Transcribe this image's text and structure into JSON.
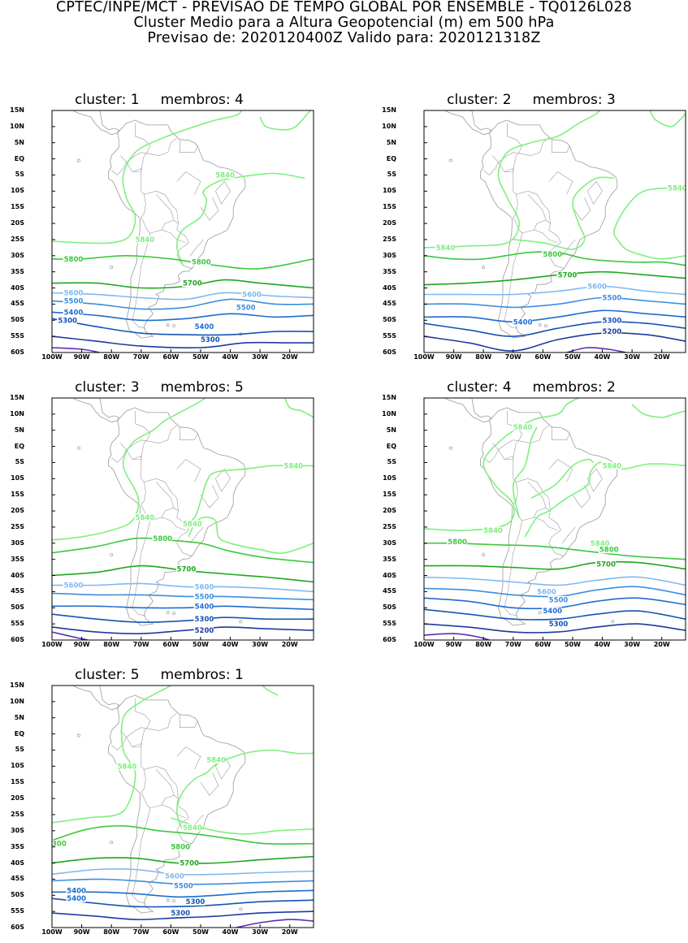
{
  "header": {
    "line1": "CPTEC/INPE/MCT - PREVISAO DE TEMPO GLOBAL POR ENSEMBLE - TQ0126L028",
    "line2": "Cluster Medio para a Altura Geopotencial (m) em 500 hPa",
    "line3": "Previsao de: 2020120400Z   Valido para: 2020121318Z"
  },
  "axes": {
    "lat_labels": [
      "15N",
      "10N",
      "5N",
      "EQ",
      "5S",
      "10S",
      "15S",
      "20S",
      "25S",
      "30S",
      "35S",
      "40S",
      "45S",
      "50S",
      "55S",
      "60S"
    ],
    "lon_labels": [
      "100W",
      "90W",
      "80W",
      "70W",
      "60W",
      "50W",
      "40W",
      "30W",
      "20W"
    ]
  },
  "colors": {
    "c5840": "#7fef7f",
    "c5800": "#3cc83c",
    "c5700": "#1fa61f",
    "c5600": "#7fb8f0",
    "c5500": "#3c8ee0",
    "c5400": "#1e6ccf",
    "c5300": "#1454b4",
    "c5200": "#1c3aa0",
    "c5100": "#5a2fb0",
    "coast": "#9a9a9a"
  },
  "panels": [
    {
      "title_a": "cluster: 1",
      "title_b": "membros: 4",
      "labels": {
        "a": "5840",
        "b": "5840",
        "c": "5800",
        "d": "5800",
        "e": "5700",
        "f": "5600",
        "g": "5600",
        "h": "5500",
        "i": "5500",
        "j": "5400",
        "k": "5300",
        "l": "5400",
        "m": "5300"
      }
    },
    {
      "title_a": "cluster: 2",
      "title_b": "membros: 3",
      "labels": {
        "a": "5840",
        "b": "5840",
        "c": "5800",
        "e": "5700",
        "f": "5600",
        "h": "5500",
        "j": "5400",
        "k": "5300",
        "n": "5200"
      }
    },
    {
      "title_a": "cluster: 3",
      "title_b": "membros: 5",
      "labels": {
        "a": "5840",
        "b": "5840",
        "g": "5840",
        "c": "5800",
        "e": "5700",
        "f": "5600",
        "h": "5600",
        "i": "5500",
        "j": "5400",
        "k": "5300",
        "n": "5200"
      }
    },
    {
      "title_a": "cluster: 4",
      "title_b": "membros: 2",
      "labels": {
        "a": "5840",
        "b": "5840",
        "g": "5840",
        "x": "5840",
        "c": "5800",
        "d": "5800",
        "e": "5700",
        "f": "5600",
        "h": "5500",
        "j": "5400",
        "k": "5300"
      }
    },
    {
      "title_a": "cluster: 5",
      "title_b": "membros: 1",
      "labels": {
        "a": "5840",
        "b": "5840",
        "g": "5840",
        "c": "300",
        "d": "5800",
        "e": "5700",
        "f": "5600",
        "h": "5500",
        "j": "5400",
        "k": "5300",
        "l": "5400",
        "m": "5300"
      }
    }
  ]
}
